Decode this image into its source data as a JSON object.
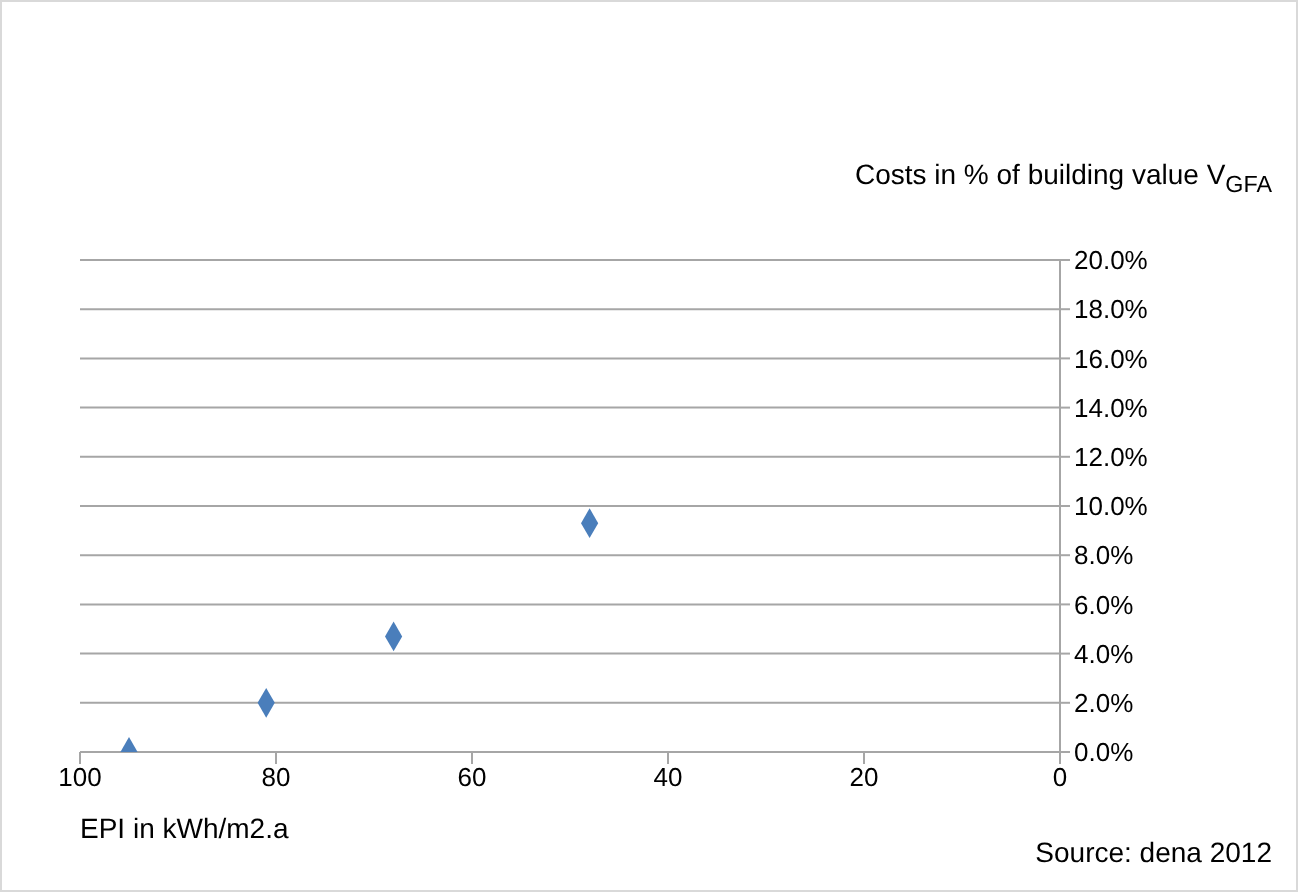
{
  "chart_data": {
    "type": "scatter",
    "ylabel": "Costs in %  of building value V$_{GFA}$",
    "xlabel": "EPI in kWh/m2.a",
    "annotations": [
      "Source: dena 2012"
    ],
    "x": [
      95,
      81,
      68,
      48
    ],
    "series": [
      {
        "color": "#4a7ebb",
        "values": [
          0,
          2.0,
          4.7,
          9.3
        ]
      }
    ],
    "xlim": [
      100,
      0
    ],
    "xticks": [
      100,
      80,
      60,
      40,
      20,
      0
    ],
    "ylim": [
      0,
      20
    ],
    "yticks": [
      {
        "value": 0,
        "label": "0.0%"
      },
      {
        "value": 2,
        "label": "2.0%"
      },
      {
        "value": 4,
        "label": "4.0%"
      },
      {
        "value": 6,
        "label": "6.0%"
      },
      {
        "value": 8,
        "label": "8.0%"
      },
      {
        "value": 10,
        "label": "10.0%"
      },
      {
        "value": 12,
        "label": "12.0%"
      },
      {
        "value": 14,
        "label": "14.0%"
      },
      {
        "value": 16,
        "label": "16.0%"
      },
      {
        "value": 18,
        "label": "18.0%"
      },
      {
        "value": 20,
        "label": "20.0%"
      }
    ],
    "grid": "y",
    "marker": "diamond"
  }
}
